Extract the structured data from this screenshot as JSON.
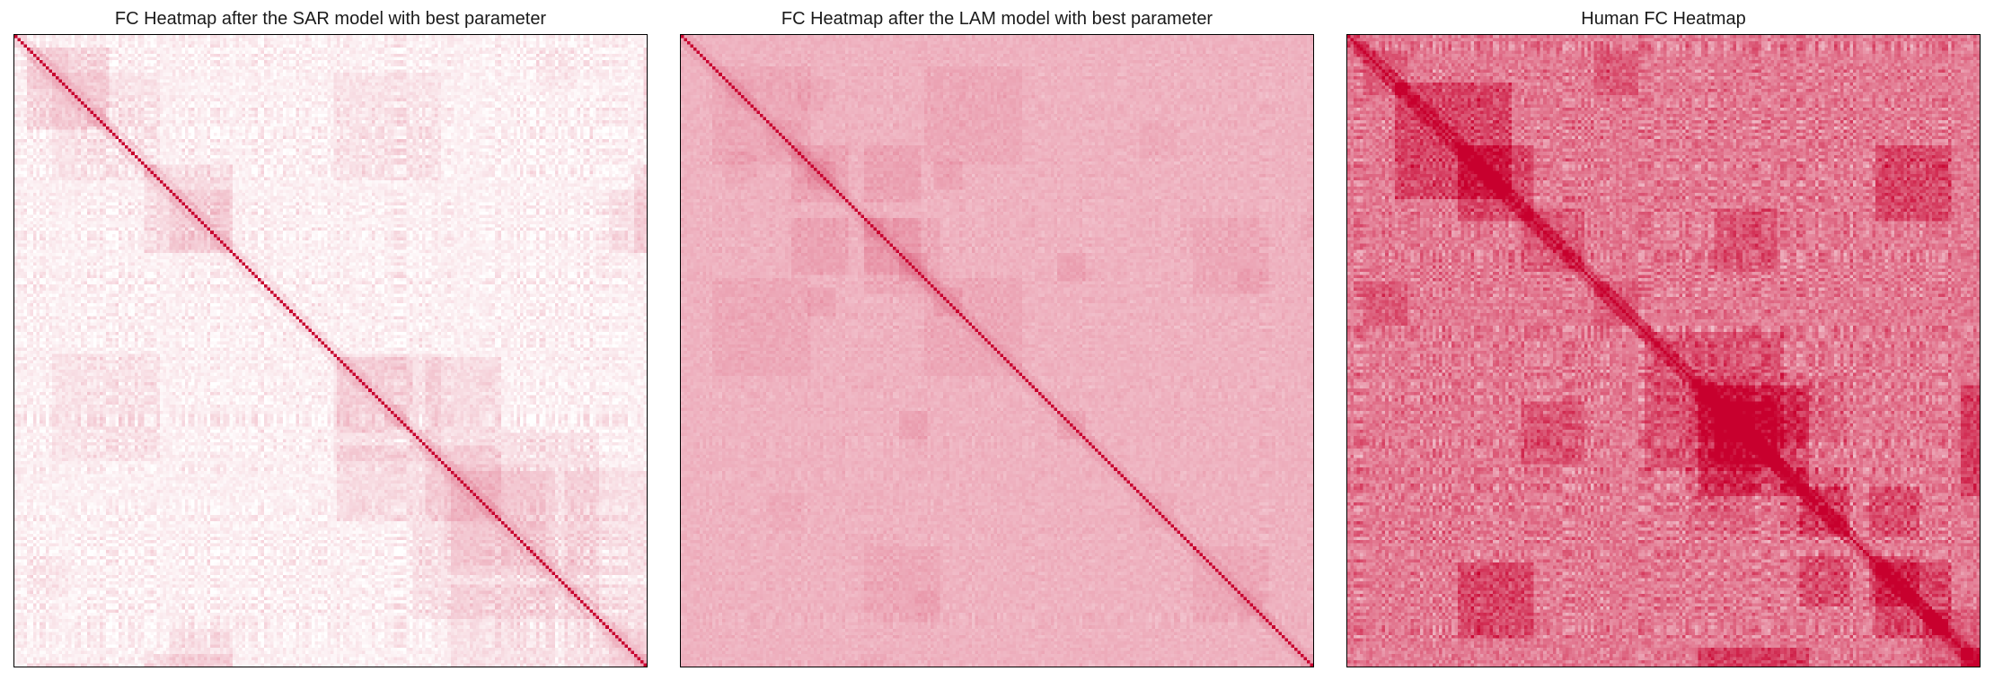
{
  "figure": {
    "colormap": {
      "low": "#ffffff",
      "high": "#c8002e"
    }
  },
  "chart_data": [
    {
      "type": "heatmap",
      "title": "FC Heatmap after the SAR model with best parameter",
      "matrix_size": 200,
      "diagonal_value": 1.0,
      "off_diagonal_mean": 0.06,
      "off_diagonal_spread": 0.07,
      "block_contrast": 1.6,
      "seed": 11
    },
    {
      "type": "heatmap",
      "title": "FC Heatmap after the LAM model with best parameter",
      "matrix_size": 200,
      "diagonal_value": 1.0,
      "off_diagonal_mean": 0.3,
      "off_diagonal_spread": 0.05,
      "block_contrast": 1.0,
      "seed": 23
    },
    {
      "type": "heatmap",
      "title": "Human FC Heatmap",
      "matrix_size": 200,
      "diagonal_value": 1.0,
      "off_diagonal_mean": 0.52,
      "off_diagonal_spread": 0.16,
      "block_contrast": 1.3,
      "seed": 37
    }
  ]
}
